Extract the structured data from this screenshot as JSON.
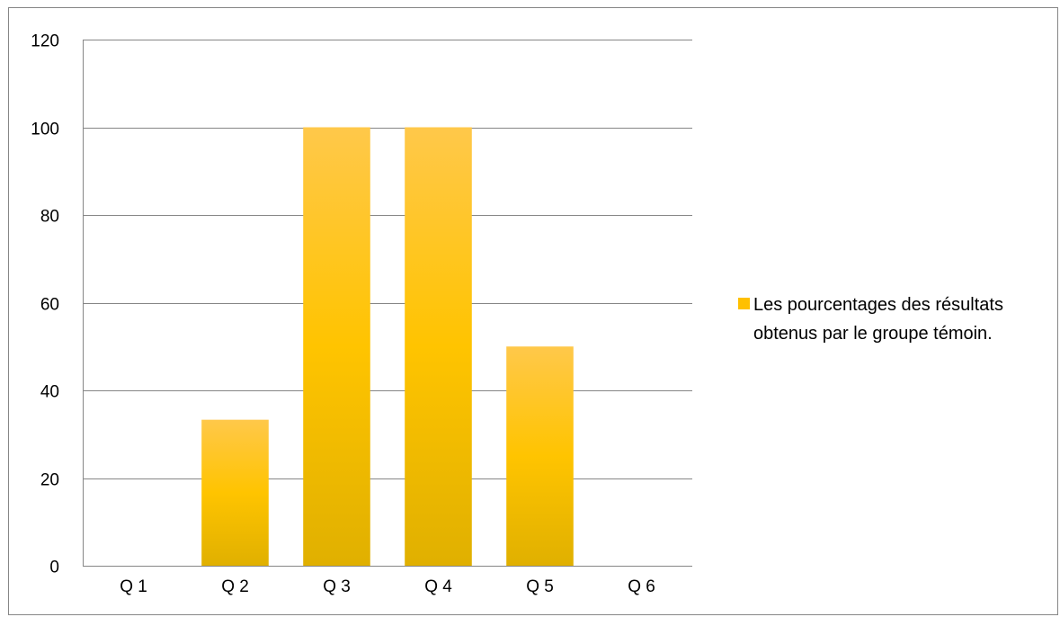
{
  "chart_data": {
    "type": "bar",
    "categories": [
      "Q 1",
      "Q 2",
      "Q 3",
      "Q 4",
      "Q 5",
      "Q 6"
    ],
    "series": [
      {
        "name": "Les pourcentages des résultats obtenus par le groupe témoin.",
        "values": [
          0,
          33.3,
          100,
          100,
          50,
          0
        ]
      }
    ],
    "title": "",
    "xlabel": "",
    "ylabel": "",
    "ylim": [
      0,
      120
    ],
    "yticks": [
      "0",
      "20",
      "40",
      "60",
      "80",
      "100",
      "120"
    ],
    "grid": true,
    "legend_position": "right",
    "legend_lines": [
      "Les pourcentages des résultats",
      "obtenus par le groupe témoin."
    ],
    "colors": {
      "bar_top": "#FFC84A",
      "bar_mid": "#FFC400",
      "bar_bottom": "#E0B000",
      "legend_swatch": "#FFC000",
      "grid": "#868686",
      "frame": "#868686"
    }
  }
}
